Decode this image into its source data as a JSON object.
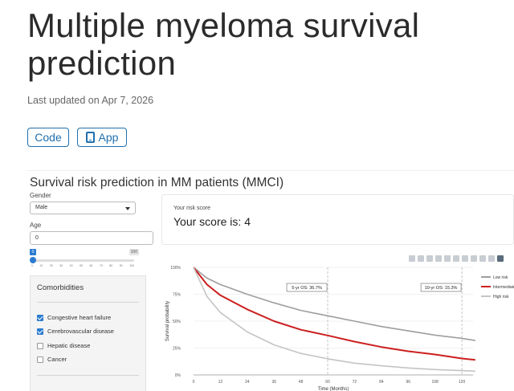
{
  "page": {
    "title": "Multiple myeloma survival prediction",
    "updated": "Last updated on Apr 7, 2026"
  },
  "buttons": {
    "code_label": "Code",
    "app_label": "App"
  },
  "app": {
    "title": "Survival risk prediction in MM patients (MMCI)",
    "gender": {
      "label": "Gender",
      "value": "Male"
    },
    "age": {
      "label": "Age",
      "value": "0",
      "slider_min": "0",
      "slider_max": "100",
      "slider_value": 0,
      "ticks": [
        "0",
        "10",
        "20",
        "30",
        "40",
        "50",
        "60",
        "70",
        "80",
        "90",
        "100"
      ]
    },
    "comorbidities": {
      "title": "Comorbidities",
      "items": [
        {
          "label": "Congestive heart failure",
          "checked": true
        },
        {
          "label": "Cerebrovascular disease",
          "checked": true
        },
        {
          "label": "Hepatic disease",
          "checked": false
        },
        {
          "label": "Cancer",
          "checked": false
        }
      ]
    },
    "score": {
      "label": "Your risk score",
      "text": "Your score is: 4"
    }
  },
  "colors": {
    "accent": "#1f6fae",
    "low_risk": "#9e9e9e",
    "intermediate_risk": "#cc1f1f",
    "high_risk": "#c4c4c4"
  },
  "chart_data": {
    "type": "line",
    "xlabel": "Time (Months)",
    "ylabel": "Survival probability",
    "xlim": [
      0,
      125
    ],
    "ylim": [
      0,
      1
    ],
    "x_ticks": [
      0,
      12,
      24,
      36,
      48,
      60,
      72,
      84,
      96,
      108,
      120
    ],
    "y_ticks": [
      0,
      0.25,
      0.5,
      0.75,
      1.0
    ],
    "y_tick_labels": [
      "0%",
      "25%",
      "50%",
      "75%",
      "100%"
    ],
    "legend_position": "top-right",
    "annotations": [
      {
        "x": 60,
        "label": "5-yr OS: 36.7%"
      },
      {
        "x": 120,
        "label": "10-yr OS: 15.3%"
      }
    ],
    "series": [
      {
        "name": "Low risk",
        "color": "#9e9e9e",
        "x": [
          0,
          6,
          12,
          24,
          36,
          48,
          60,
          72,
          84,
          96,
          108,
          120,
          126
        ],
        "y": [
          1.0,
          0.9,
          0.84,
          0.75,
          0.67,
          0.6,
          0.55,
          0.5,
          0.45,
          0.41,
          0.37,
          0.34,
          0.32
        ]
      },
      {
        "name": "Intermediate risk",
        "color": "#cc1f1f",
        "x": [
          0,
          6,
          12,
          24,
          36,
          48,
          60,
          72,
          84,
          96,
          108,
          120,
          126
        ],
        "y": [
          1.0,
          0.84,
          0.74,
          0.61,
          0.5,
          0.42,
          0.367,
          0.31,
          0.26,
          0.22,
          0.19,
          0.153,
          0.14
        ]
      },
      {
        "name": "High risk",
        "color": "#c4c4c4",
        "x": [
          0,
          6,
          12,
          24,
          36,
          48,
          60,
          72,
          84,
          96,
          108,
          120,
          126
        ],
        "y": [
          1.0,
          0.73,
          0.58,
          0.4,
          0.28,
          0.2,
          0.15,
          0.11,
          0.085,
          0.065,
          0.05,
          0.04,
          0.035
        ]
      }
    ]
  }
}
